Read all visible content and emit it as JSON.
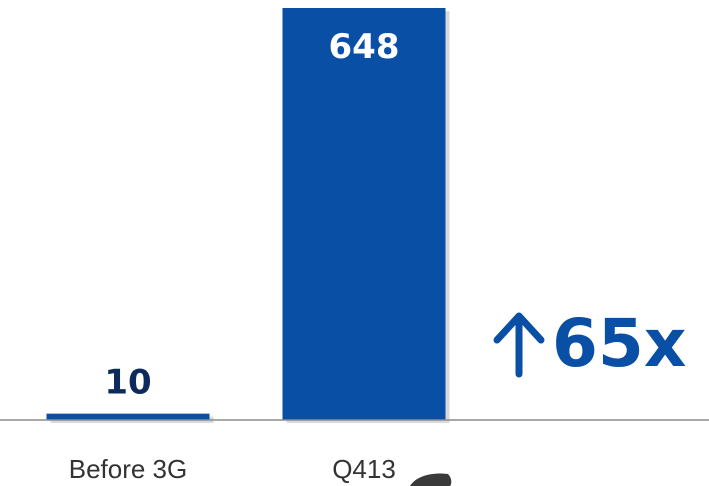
{
  "chart_data": {
    "type": "bar",
    "categories": [
      "Before 3G",
      "Q413"
    ],
    "values": [
      10,
      648
    ],
    "ylim": [
      0,
      648
    ],
    "grid": false,
    "annotation": {
      "text": "65x",
      "icon": "arrow-up-icon",
      "color": "#0a4fa6"
    },
    "colors": {
      "bar": "#0a4fa6",
      "value_label_inside": "#ffffff",
      "value_label_above": "#0d2a5c",
      "tick_label": "#333333"
    }
  }
}
